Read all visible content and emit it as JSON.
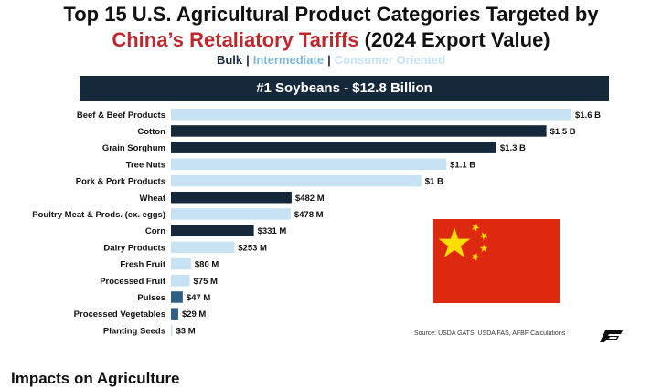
{
  "header": {
    "title_line1": "Top 15 U.S. Agricultural Product Categories Targeted by",
    "title_line2_red": "China’s Retaliatory Tariffs",
    "title_line2_rest": " (2024 Export Value)"
  },
  "legend": {
    "bulk": "Bulk",
    "intermediate": "Intermediate",
    "consumer": "Consumer Oriented",
    "separator": "|"
  },
  "banner": {
    "text": "#1 Soybeans - $12.8 Billion"
  },
  "colors": {
    "bulk": "#15293b",
    "intermediate": "#2f5f85",
    "consumer": "#c7e3f3",
    "flag_red": "#de2910",
    "flag_star": "#ffde00"
  },
  "chart_data": {
    "type": "bar",
    "orientation": "horizontal",
    "unit": "USD million",
    "categories": [
      "Beef & Beef Products",
      "Cotton",
      "Grain Sorghum",
      "Tree Nuts",
      "Pork & Pork Products",
      "Wheat",
      "Poultry Meat & Prods. (ex. eggs)",
      "Corn",
      "Dairy Products",
      "Fresh Fruit",
      "Processed Fruit",
      "Pulses",
      "Processed Vegetables",
      "Planting Seeds"
    ],
    "values": [
      1600,
      1500,
      1300,
      1100,
      1000,
      482,
      478,
      331,
      253,
      80,
      75,
      47,
      29,
      3
    ],
    "value_labels": [
      "$1.6 B",
      "$1.5 B",
      "$1.3 B",
      "$1.1 B",
      "$1 B",
      "$482 M",
      "$478 M",
      "$331 M",
      "$253 M",
      "$80 M",
      "$75 M",
      "$47 M",
      "$29 M",
      "$3 M"
    ],
    "groups": [
      "consumer",
      "bulk",
      "bulk",
      "consumer",
      "consumer",
      "bulk",
      "consumer",
      "bulk",
      "consumer",
      "consumer",
      "consumer",
      "intermediate",
      "intermediate",
      "consumer"
    ],
    "xlim": [
      0,
      1600
    ]
  },
  "source": "Source: USDA GATS, USDA FAS, AFBF Calculations",
  "logo": {
    "icon": "afbf-logo-icon"
  },
  "flag": {
    "icon": "china-flag-icon"
  },
  "bottom_heading": "Impacts on Agriculture"
}
